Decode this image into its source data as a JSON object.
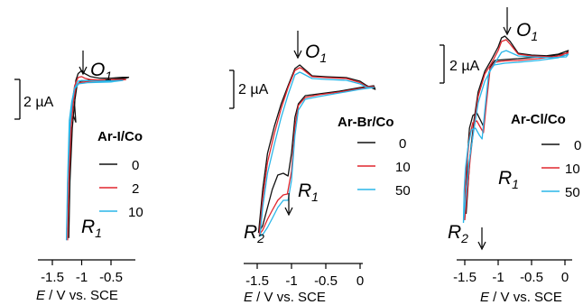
{
  "colors": {
    "black": "#111111",
    "red": "#e0262e",
    "cyan": "#2ab6e8"
  },
  "chart_data": [
    {
      "type": "line",
      "panel": "Ar-I/Co",
      "legend_title": "Ar-I/Co",
      "xlabel_italic": "E",
      "xlabel_rest": " / V vs. SCE",
      "x_ticks": [
        "-1.5",
        "-1",
        "-0.5"
      ],
      "x_tick_values": [
        -1.5,
        -1.0,
        -0.5
      ],
      "xlim": [
        -1.7,
        -0.1
      ],
      "scale_bar": "2 µA",
      "peak_labels": [
        {
          "letter": "O",
          "sub": "1"
        },
        {
          "letter": "R",
          "sub": "1"
        }
      ],
      "series": [
        {
          "name": "0",
          "color": "#111111",
          "points": [
            [
              -1.22,
              -19.5
            ],
            [
              -1.2,
              -12
            ],
            [
              -1.18,
              -4
            ],
            [
              -1.14,
              -3.4
            ],
            [
              -1.1,
              -4.2
            ],
            [
              -1.12,
              -2
            ],
            [
              -1.1,
              1.3
            ],
            [
              -1.06,
              2.2
            ],
            [
              -1.0,
              2.6
            ],
            [
              -0.95,
              2.2
            ],
            [
              -0.85,
              1.8
            ],
            [
              -0.7,
              1.6
            ],
            [
              -0.5,
              1.6
            ],
            [
              -0.3,
              1.7
            ],
            [
              -0.2,
              1.7
            ],
            [
              -0.25,
              1.6
            ],
            [
              -0.5,
              1.4
            ],
            [
              -0.7,
              1.35
            ],
            [
              -0.9,
              1.3
            ],
            [
              -1.02,
              1.2
            ],
            [
              -1.08,
              0.6
            ],
            [
              -1.12,
              -1.5
            ],
            [
              -1.16,
              -5
            ],
            [
              -1.2,
              -12
            ],
            [
              -1.22,
              -19.5
            ]
          ]
        },
        {
          "name": "2",
          "color": "#e0262e",
          "points": [
            [
              -1.24,
              -19.8
            ],
            [
              -1.22,
              -12
            ],
            [
              -1.19,
              -4
            ],
            [
              -1.16,
              -1.5
            ],
            [
              -1.12,
              0.6
            ],
            [
              -1.06,
              1.7
            ],
            [
              -1.0,
              1.8
            ],
            [
              -0.95,
              1.6
            ],
            [
              -0.85,
              1.4
            ],
            [
              -0.7,
              1.35
            ],
            [
              -0.5,
              1.4
            ],
            [
              -0.25,
              1.4
            ],
            [
              -0.5,
              1.25
            ],
            [
              -0.7,
              1.2
            ],
            [
              -0.9,
              1.15
            ],
            [
              -1.04,
              1.0
            ],
            [
              -1.1,
              0.4
            ],
            [
              -1.14,
              -1.5
            ],
            [
              -1.18,
              -5
            ],
            [
              -1.22,
              -12
            ],
            [
              -1.24,
              -19.8
            ]
          ]
        },
        {
          "name": "10",
          "color": "#2ab6e8",
          "points": [
            [
              -1.26,
              -19.8
            ],
            [
              -1.24,
              -12
            ],
            [
              -1.21,
              -4
            ],
            [
              -1.17,
              -1.5
            ],
            [
              -1.12,
              0.3
            ],
            [
              -1.06,
              1.2
            ],
            [
              -1.0,
              1.3
            ],
            [
              -0.9,
              1.25
            ],
            [
              -0.7,
              1.2
            ],
            [
              -0.5,
              1.25
            ],
            [
              -0.3,
              1.3
            ],
            [
              -0.5,
              1.1
            ],
            [
              -0.7,
              1.05
            ],
            [
              -0.9,
              1.0
            ],
            [
              -1.05,
              0.85
            ],
            [
              -1.12,
              0.2
            ],
            [
              -1.16,
              -1.5
            ],
            [
              -1.2,
              -5
            ],
            [
              -1.24,
              -12
            ],
            [
              -1.26,
              -19.8
            ]
          ]
        }
      ]
    },
    {
      "type": "line",
      "panel": "Ar-Br/Co",
      "legend_title": "Ar-Br/Co",
      "xlabel_italic": "E",
      "xlabel_rest": " / V vs. SCE",
      "x_ticks": [
        "-1.5",
        "-1",
        "-0.5",
        "0"
      ],
      "x_tick_values": [
        -1.5,
        -1.0,
        -0.5,
        0.0
      ],
      "xlim": [
        -1.7,
        0.35
      ],
      "scale_bar": "2 µA",
      "peak_labels": [
        {
          "letter": "O",
          "sub": "1"
        },
        {
          "letter": "R",
          "sub": "1"
        },
        {
          "letter": "R",
          "sub": "2"
        }
      ],
      "series": [
        {
          "name": "0",
          "color": "#111111",
          "points": [
            [
              -1.48,
              -14.8
            ],
            [
              -1.42,
              -14
            ],
            [
              -1.35,
              -12
            ],
            [
              -1.28,
              -10
            ],
            [
              -1.2,
              -8.4
            ],
            [
              -1.12,
              -8.2
            ],
            [
              -1.05,
              -8.5
            ],
            [
              -1.0,
              -6
            ],
            [
              -0.95,
              -2
            ],
            [
              -0.9,
              -0.5
            ],
            [
              -0.8,
              0.4
            ],
            [
              -0.6,
              0.6
            ],
            [
              -0.3,
              0.9
            ],
            [
              0.0,
              1.3
            ],
            [
              0.2,
              1.5
            ],
            [
              0.22,
              1.1
            ],
            [
              0.1,
              1.5
            ],
            [
              0.0,
              2.0
            ],
            [
              -0.2,
              2.4
            ],
            [
              -0.5,
              2.5
            ],
            [
              -0.7,
              2.6
            ],
            [
              -0.85,
              3.6
            ],
            [
              -0.88,
              3.8
            ],
            [
              -0.95,
              3.4
            ],
            [
              -1.05,
              1.5
            ],
            [
              -1.15,
              -0.5
            ],
            [
              -1.25,
              -3
            ],
            [
              -1.35,
              -6
            ],
            [
              -1.42,
              -10
            ],
            [
              -1.48,
              -14.8
            ]
          ]
        },
        {
          "name": "10",
          "color": "#e0262e",
          "points": [
            [
              -1.47,
              -15
            ],
            [
              -1.42,
              -14.5
            ],
            [
              -1.35,
              -13.3
            ],
            [
              -1.28,
              -12.3
            ],
            [
              -1.2,
              -11.2
            ],
            [
              -1.12,
              -10.6
            ],
            [
              -1.06,
              -10.5
            ],
            [
              -1.0,
              -8
            ],
            [
              -0.95,
              -3
            ],
            [
              -0.9,
              -0.7
            ],
            [
              -0.8,
              0.2
            ],
            [
              -0.6,
              0.5
            ],
            [
              -0.3,
              0.8
            ],
            [
              0.0,
              1.2
            ],
            [
              0.2,
              1.4
            ],
            [
              0.1,
              1.4
            ],
            [
              0.0,
              1.85
            ],
            [
              -0.2,
              2.3
            ],
            [
              -0.5,
              2.4
            ],
            [
              -0.7,
              2.5
            ],
            [
              -0.85,
              3.4
            ],
            [
              -0.88,
              3.5
            ],
            [
              -0.95,
              3.2
            ],
            [
              -1.05,
              1.3
            ],
            [
              -1.15,
              -1.0
            ],
            [
              -1.25,
              -3.8
            ],
            [
              -1.35,
              -7
            ],
            [
              -1.42,
              -11
            ],
            [
              -1.47,
              -15
            ]
          ]
        },
        {
          "name": "50",
          "color": "#2ab6e8",
          "points": [
            [
              -1.46,
              -15.2
            ],
            [
              -1.42,
              -15
            ],
            [
              -1.35,
              -14.2
            ],
            [
              -1.28,
              -13.2
            ],
            [
              -1.2,
              -12.0
            ],
            [
              -1.12,
              -11.2
            ],
            [
              -1.05,
              -11.2
            ],
            [
              -1.0,
              -9
            ],
            [
              -0.95,
              -4
            ],
            [
              -0.9,
              -1.2
            ],
            [
              -0.8,
              0.0
            ],
            [
              -0.6,
              0.3
            ],
            [
              -0.3,
              0.7
            ],
            [
              0.0,
              1.1
            ],
            [
              0.2,
              1.3
            ],
            [
              0.1,
              1.3
            ],
            [
              0.0,
              1.7
            ],
            [
              -0.2,
              2.1
            ],
            [
              -0.5,
              2.2
            ],
            [
              -0.7,
              2.3
            ],
            [
              -0.85,
              2.9
            ],
            [
              -0.88,
              3.0
            ],
            [
              -0.95,
              2.7
            ],
            [
              -1.05,
              0.5
            ],
            [
              -1.15,
              -2.0
            ],
            [
              -1.25,
              -5
            ],
            [
              -1.35,
              -8.2
            ],
            [
              -1.42,
              -12
            ],
            [
              -1.46,
              -15.2
            ]
          ]
        }
      ]
    },
    {
      "type": "line",
      "panel": "Ar-Cl/Co",
      "legend_title": "Ar-Cl/Co",
      "xlabel_italic": "E",
      "xlabel_rest": " / V vs. SCE",
      "x_ticks": [
        "-1.5",
        "-1",
        "-0.5",
        "0"
      ],
      "x_tick_values": [
        -1.5,
        -1.0,
        -0.5,
        0.0
      ],
      "xlim": [
        -1.72,
        0.22
      ],
      "scale_bar": "2 µA",
      "peak_labels": [
        {
          "letter": "O",
          "sub": "1"
        },
        {
          "letter": "R",
          "sub": "1"
        },
        {
          "letter": "R",
          "sub": "2"
        }
      ],
      "series": [
        {
          "name": "0",
          "color": "#111111",
          "points": [
            [
              -1.48,
              -15.5
            ],
            [
              -1.47,
              -12
            ],
            [
              -1.46,
              -9
            ],
            [
              -1.43,
              -6
            ],
            [
              -1.38,
              -4.6
            ],
            [
              -1.32,
              -4.3
            ],
            [
              -1.26,
              -5.2
            ],
            [
              -1.22,
              -5.8
            ],
            [
              -1.18,
              -3
            ],
            [
              -1.12,
              0.8
            ],
            [
              -1.05,
              1.5
            ],
            [
              -0.9,
              1.6
            ],
            [
              -0.7,
              1.7
            ],
            [
              -0.4,
              1.9
            ],
            [
              -0.1,
              2.2
            ],
            [
              0.05,
              2.6
            ],
            [
              0.02,
              2.3
            ],
            [
              -0.2,
              2.0
            ],
            [
              -0.5,
              2.1
            ],
            [
              -0.7,
              2.3
            ],
            [
              -0.82,
              3.6
            ],
            [
              -0.9,
              4.2
            ],
            [
              -0.95,
              4.0
            ],
            [
              -1.0,
              3.0
            ],
            [
              -1.1,
              1.6
            ],
            [
              -1.2,
              0.3
            ],
            [
              -1.3,
              -2
            ],
            [
              -1.36,
              -5
            ],
            [
              -1.42,
              -9
            ],
            [
              -1.48,
              -15.5
            ]
          ]
        },
        {
          "name": "10",
          "color": "#e0262e",
          "points": [
            [
              -1.5,
              -16.2
            ],
            [
              -1.49,
              -12.5
            ],
            [
              -1.47,
              -10
            ],
            [
              -1.43,
              -7
            ],
            [
              -1.38,
              -5.4
            ],
            [
              -1.32,
              -5.2
            ],
            [
              -1.26,
              -6.0
            ],
            [
              -1.22,
              -6.5
            ],
            [
              -1.18,
              -3.5
            ],
            [
              -1.12,
              0.6
            ],
            [
              -1.05,
              1.3
            ],
            [
              -0.9,
              1.45
            ],
            [
              -0.7,
              1.5
            ],
            [
              -0.4,
              1.7
            ],
            [
              -0.1,
              2.0
            ],
            [
              0.05,
              2.4
            ],
            [
              0.02,
              2.1
            ],
            [
              -0.2,
              1.9
            ],
            [
              -0.5,
              2.0
            ],
            [
              -0.7,
              2.2
            ],
            [
              -0.82,
              3.3
            ],
            [
              -0.88,
              3.8
            ],
            [
              -0.95,
              3.6
            ],
            [
              -1.0,
              2.6
            ],
            [
              -1.1,
              1.2
            ],
            [
              -1.2,
              0.0
            ],
            [
              -1.3,
              -2.5
            ],
            [
              -1.36,
              -5.5
            ],
            [
              -1.42,
              -9.5
            ],
            [
              -1.5,
              -16.2
            ]
          ]
        },
        {
          "name": "50",
          "color": "#2ab6e8",
          "points": [
            [
              -1.52,
              -16.5
            ],
            [
              -1.51,
              -13
            ],
            [
              -1.49,
              -10.5
            ],
            [
              -1.45,
              -8
            ],
            [
              -1.4,
              -6.2
            ],
            [
              -1.34,
              -6.0
            ],
            [
              -1.28,
              -6.8
            ],
            [
              -1.24,
              -7.2
            ],
            [
              -1.2,
              -4
            ],
            [
              -1.14,
              0.2
            ],
            [
              -1.06,
              1.0
            ],
            [
              -0.9,
              1.2
            ],
            [
              -0.7,
              1.3
            ],
            [
              -0.4,
              1.5
            ],
            [
              -0.1,
              1.8
            ],
            [
              0.05,
              2.2
            ],
            [
              0.02,
              1.9
            ],
            [
              -0.2,
              1.8
            ],
            [
              -0.5,
              1.9
            ],
            [
              -0.7,
              2.0
            ],
            [
              -0.82,
              2.4
            ],
            [
              -0.88,
              2.6
            ],
            [
              -0.95,
              2.4
            ],
            [
              -1.0,
              1.8
            ],
            [
              -1.1,
              0.6
            ],
            [
              -1.2,
              -0.8
            ],
            [
              -1.3,
              -3.2
            ],
            [
              -1.36,
              -6
            ],
            [
              -1.44,
              -10
            ],
            [
              -1.52,
              -16.5
            ]
          ]
        }
      ]
    }
  ]
}
